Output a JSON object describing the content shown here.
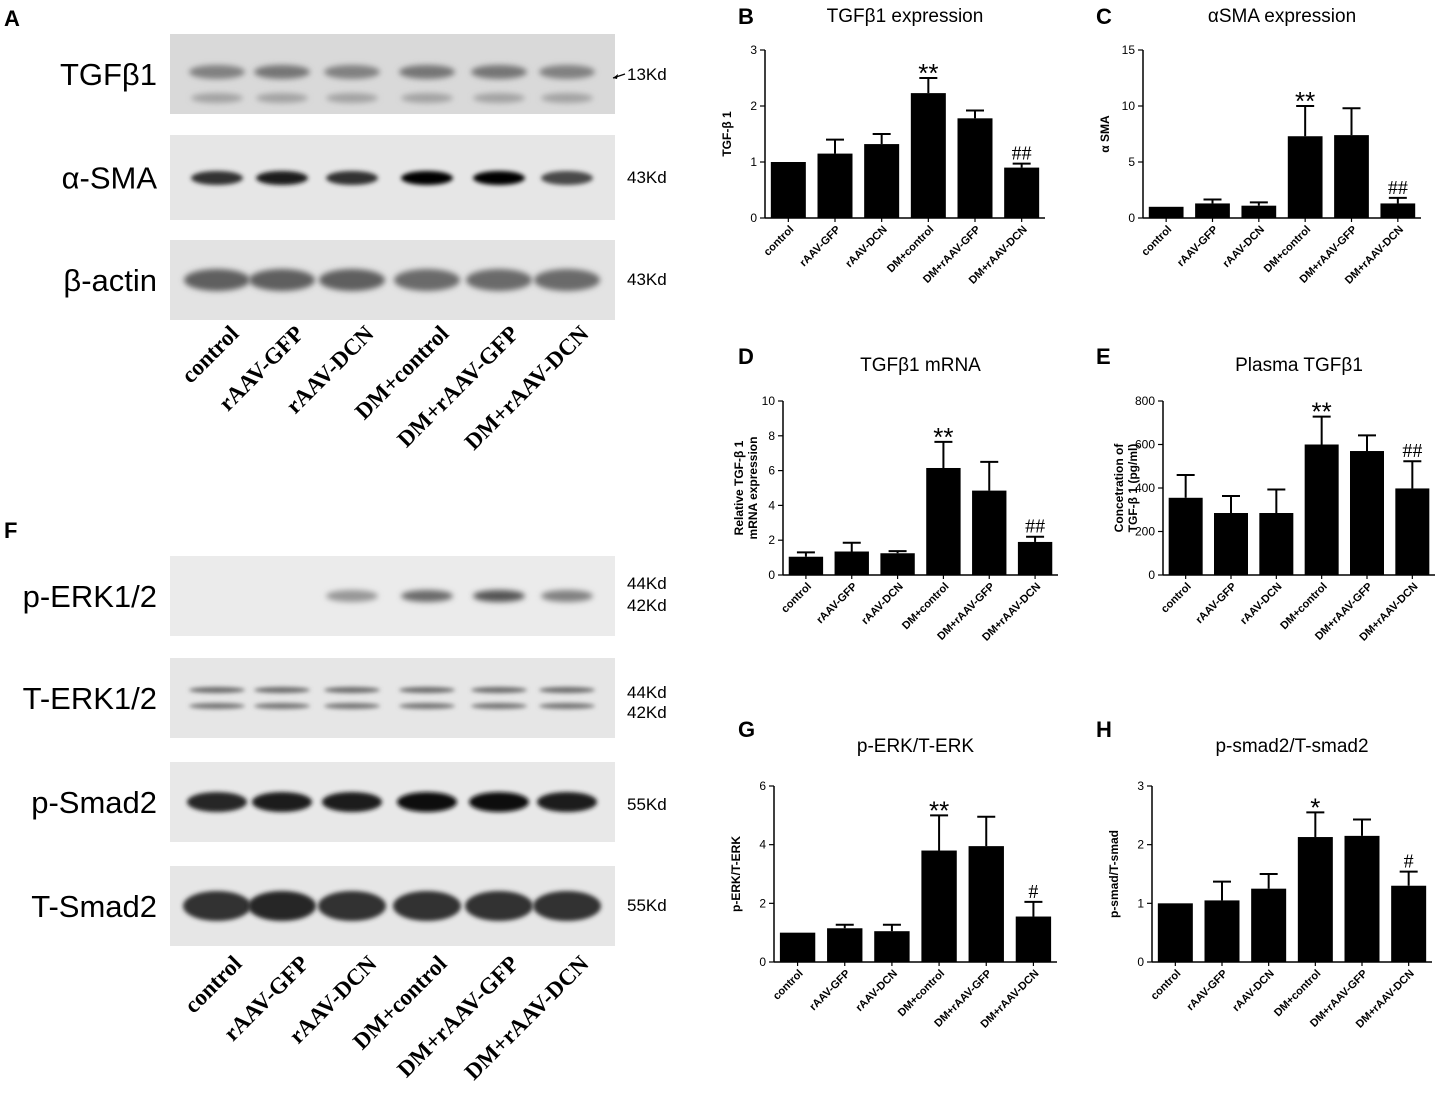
{
  "blots": {
    "top": {
      "panel_letter": "A",
      "rows": [
        {
          "label": "TGFβ1",
          "kd": "13Kd",
          "arrow": true
        },
        {
          "label": "α-SMA",
          "kd": "43Kd",
          "arrow": false
        },
        {
          "label": "β-actin",
          "kd": "43Kd",
          "arrow": false
        }
      ],
      "lanes": [
        "control",
        "rAAV-GFP",
        "rAAV-DCN",
        "DM+control",
        "DM+rAAV-GFP",
        "DM+rAAV-DCN"
      ]
    },
    "bottom": {
      "panel_letter": "F",
      "rows": [
        {
          "label": "p-ERK1/2",
          "kd": [
            "44Kd",
            "42Kd"
          ]
        },
        {
          "label": "T-ERK1/2",
          "kd": [
            "44Kd",
            "42Kd"
          ]
        },
        {
          "label": "p-Smad2",
          "kd": [
            "55Kd"
          ]
        },
        {
          "label": "T-Smad2",
          "kd": [
            "55Kd"
          ]
        }
      ],
      "lanes": [
        "control",
        "rAAV-GFP",
        "rAAV-DCN",
        "DM+control",
        "DM+rAAV-GFP",
        "DM+rAAV-DCN"
      ]
    }
  },
  "chart_data": [
    {
      "panel": "B",
      "type": "bar",
      "title": "TGFβ1 expression",
      "xlabel": "",
      "ylabel": "TGF-β 1",
      "categories": [
        "control",
        "rAAV-GFP",
        "rAAV-DCN",
        "DM+control",
        "DM+rAAV-GFP",
        "DM+rAAV-DCN"
      ],
      "values": [
        1.0,
        1.15,
        1.32,
        2.23,
        1.78,
        0.9
      ],
      "errors": [
        0,
        0.25,
        0.18,
        0.27,
        0.14,
        0.07
      ],
      "annotations": [
        "",
        "",
        "",
        "**",
        "",
        "##"
      ],
      "ylim": [
        0,
        3
      ],
      "yticks": [
        "0",
        "1",
        "2",
        "3"
      ]
    },
    {
      "panel": "C",
      "type": "bar",
      "title": "αSMA expression",
      "xlabel": "",
      "ylabel": "α SMA",
      "categories": [
        "control",
        "rAAV-GFP",
        "rAAV-DCN",
        "DM+control",
        "DM+rAAV-GFP",
        "DM+rAAV-DCN"
      ],
      "values": [
        1.0,
        1.3,
        1.1,
        7.3,
        7.4,
        1.3
      ],
      "errors": [
        0,
        0.35,
        0.3,
        2.7,
        2.4,
        0.5
      ],
      "annotations": [
        "",
        "",
        "",
        "**",
        "",
        "##"
      ],
      "ylim": [
        0,
        15
      ],
      "yticks": [
        "0",
        "5",
        "10",
        "15"
      ]
    },
    {
      "panel": "D",
      "type": "bar",
      "title": "TGFβ1 mRNA",
      "xlabel": "",
      "ylabel": "Relative TGF-β 1 mRNA expression",
      "categories": [
        "control",
        "rAAV-GFP",
        "rAAV-DCN",
        "DM+control",
        "DM+rAAV-GFP",
        "DM+rAAV-DCN"
      ],
      "values": [
        1.05,
        1.35,
        1.25,
        6.15,
        4.85,
        1.9
      ],
      "errors": [
        0.25,
        0.5,
        0.12,
        1.5,
        1.65,
        0.3
      ],
      "annotations": [
        "",
        "",
        "",
        "**",
        "",
        "##"
      ],
      "ylim": [
        0,
        10
      ],
      "yticks": [
        "0",
        "2",
        "4",
        "6",
        "8",
        "10"
      ]
    },
    {
      "panel": "E",
      "type": "bar",
      "title": "Plasma TGFβ1",
      "xlabel": "",
      "ylabel": "Concetration of TGF-β 1 (pg/ml)",
      "categories": [
        "control",
        "rAAV-GFP",
        "rAAV-DCN",
        "DM+control",
        "DM+rAAV-GFP",
        "DM+rAAV-DCN"
      ],
      "values": [
        355,
        285,
        285,
        600,
        570,
        398
      ],
      "errors": [
        105,
        78,
        108,
        128,
        72,
        125
      ],
      "annotations": [
        "",
        "",
        "",
        "**",
        "",
        "##"
      ],
      "ylim": [
        0,
        800
      ],
      "yticks": [
        "0",
        "200",
        "400",
        "600",
        "800"
      ]
    },
    {
      "panel": "G",
      "type": "bar",
      "title": "p-ERK/T-ERK",
      "xlabel": "",
      "ylabel": "p-ERK/T-ERK",
      "categories": [
        "control",
        "rAAV-GFP",
        "rAAV-DCN",
        "DM+control",
        "DM+rAAV-GFP",
        "DM+rAAV-DCN"
      ],
      "values": [
        1.0,
        1.15,
        1.05,
        3.8,
        3.95,
        1.55
      ],
      "errors": [
        0,
        0.12,
        0.22,
        1.2,
        1.0,
        0.5
      ],
      "annotations": [
        "",
        "",
        "",
        "**",
        "",
        "#"
      ],
      "ylim": [
        0,
        6
      ],
      "yticks": [
        "0",
        "2",
        "4",
        "6"
      ]
    },
    {
      "panel": "H",
      "type": "bar",
      "title": "p-smad2/T-smad2",
      "xlabel": "",
      "ylabel": "p-smad/T-smad",
      "categories": [
        "control",
        "rAAV-GFP",
        "rAAV-DCN",
        "DM+control",
        "DM+rAAV-GFP",
        "DM+rAAV-DCN"
      ],
      "values": [
        1.0,
        1.05,
        1.25,
        2.13,
        2.15,
        1.3
      ],
      "errors": [
        0,
        0.32,
        0.25,
        0.42,
        0.28,
        0.24
      ],
      "annotations": [
        "",
        "",
        "",
        "*",
        "",
        "#"
      ],
      "ylim": [
        0,
        3
      ],
      "yticks": [
        "0",
        "1",
        "2",
        "3"
      ]
    }
  ]
}
